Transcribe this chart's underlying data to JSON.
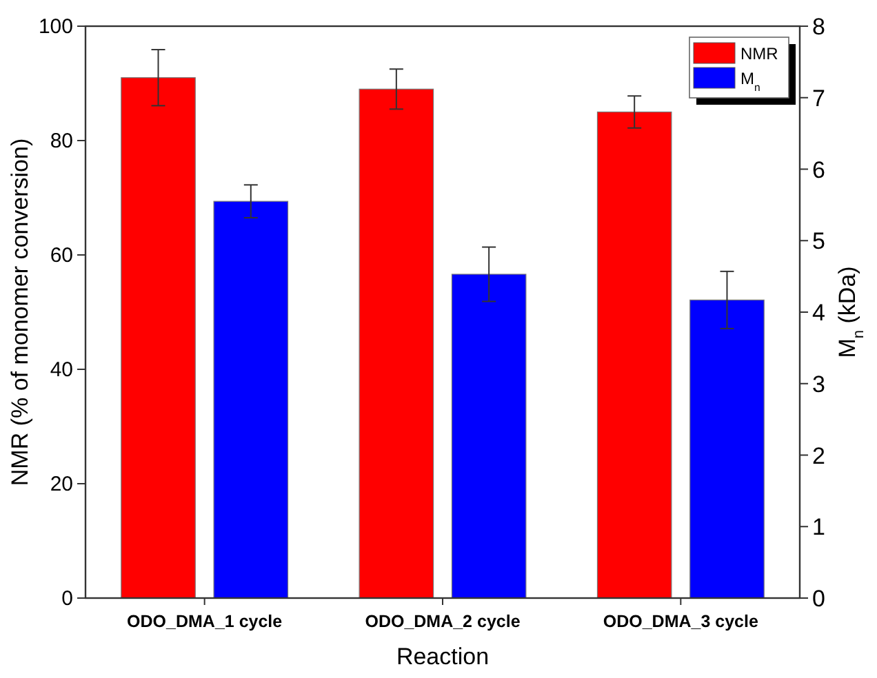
{
  "chart_data": {
    "type": "bar",
    "xlabel": "Reaction",
    "ylabel": "NMR (% of monomer conversion)",
    "y2label": "M$_{n}$ (kDa)",
    "categories": [
      "ODO_DMA_1 cycle",
      "ODO_DMA_2 cycle",
      "ODO_DMA_3 cycle"
    ],
    "series": [
      {
        "name": "NMR",
        "color": "#ff0000",
        "values": [
          91,
          89,
          85
        ],
        "errors": [
          4.9,
          3.5,
          2.8
        ]
      },
      {
        "name": "M$_{n}$",
        "color": "#0000ff",
        "values": [
          5.55,
          4.53,
          4.17
        ],
        "errors": [
          0.23,
          0.38,
          0.4
        ],
        "axis": "y2"
      }
    ],
    "ylim": [
      0,
      100
    ],
    "yticks": [
      0,
      20,
      40,
      60,
      80,
      100
    ],
    "y2lim": [
      0,
      8
    ],
    "y2ticks": [
      0,
      1,
      2,
      3,
      4,
      5,
      6,
      7,
      8
    ],
    "legend": "top right",
    "grid": false
  }
}
